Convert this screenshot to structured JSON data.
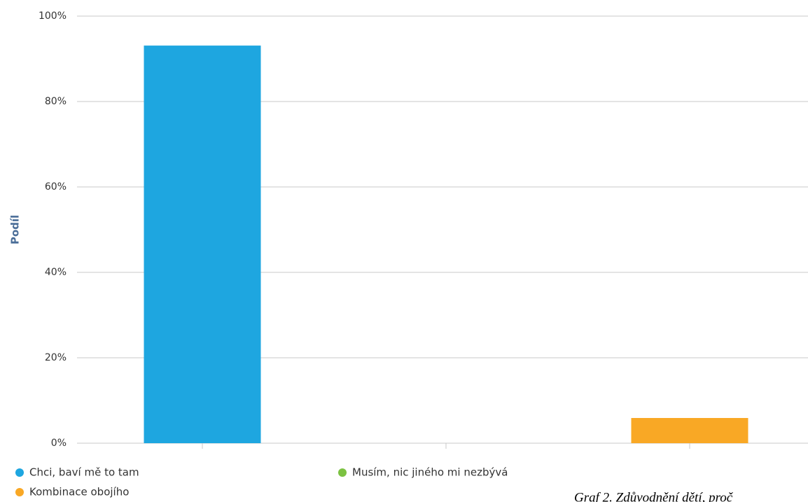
{
  "chart_data": {
    "type": "bar",
    "y_label": "Podíl",
    "categories": [
      null,
      null,
      null
    ],
    "series": [
      {
        "name": "Chci, baví mě to tam",
        "color": "#1ea6e0",
        "values": [
          93.1,
          null,
          null
        ]
      },
      {
        "name": "Musím, nic jiného mi nezbývá",
        "color": "#7cc242",
        "values": [
          null,
          0,
          null
        ]
      },
      {
        "name": "Kombinace obojího",
        "color": "#f9a825",
        "values": [
          null,
          null,
          5.9
        ]
      }
    ],
    "ylim": [
      0,
      100
    ],
    "yticks": [
      {
        "value": 0,
        "label": "0%"
      },
      {
        "value": 20,
        "label": "20%"
      },
      {
        "value": 40,
        "label": "40%"
      },
      {
        "value": 60,
        "label": "60%"
      },
      {
        "value": 80,
        "label": "80%"
      },
      {
        "value": 100,
        "label": "100%"
      }
    ],
    "grid": true,
    "caption": "Graf 2. Zdůvodnění dětí, proč"
  }
}
